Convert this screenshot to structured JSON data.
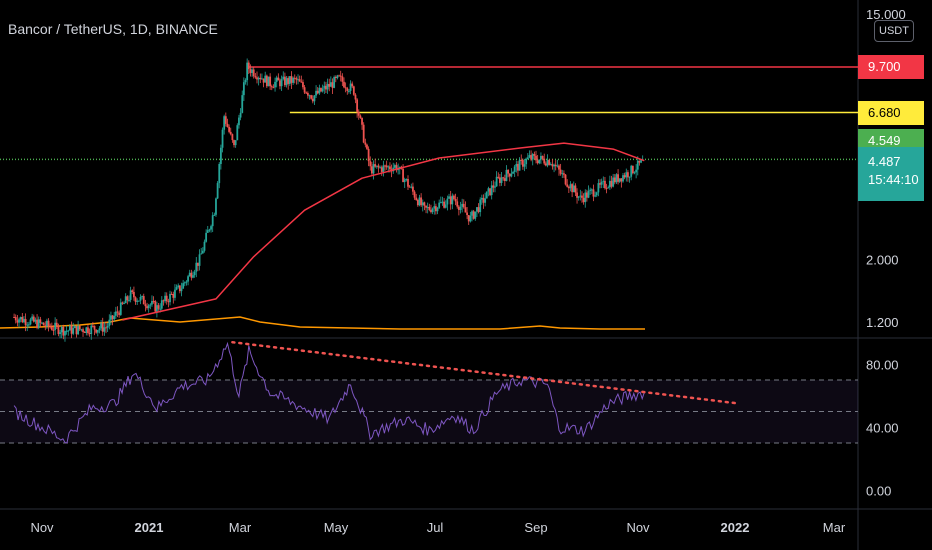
{
  "header": {
    "title": "Bancor / TetherUS, 1D, BINANCE",
    "currency_button": "USDT"
  },
  "price_axis": {
    "ticks": [
      {
        "label": "15.000",
        "value": 15
      },
      {
        "label": "2.000",
        "value": 2
      },
      {
        "label": "1.200",
        "value": 1.2
      }
    ]
  },
  "rsi_axis": {
    "ticks": [
      {
        "label": "80.00",
        "value": 80
      },
      {
        "label": "40.00",
        "value": 40
      },
      {
        "label": "0.00",
        "value": 0
      }
    ]
  },
  "time_axis": {
    "ticks": [
      {
        "label": "Nov",
        "bold": false
      },
      {
        "label": "2021",
        "bold": true
      },
      {
        "label": "Mar",
        "bold": false
      },
      {
        "label": "May",
        "bold": false
      },
      {
        "label": "Jul",
        "bold": false
      },
      {
        "label": "Sep",
        "bold": false
      },
      {
        "label": "Nov",
        "bold": false
      },
      {
        "label": "2022",
        "bold": true
      },
      {
        "label": "Mar",
        "bold": false
      }
    ]
  },
  "badges": {
    "resistance_high": {
      "label": "9.700",
      "color": "#f23645",
      "text_color": "#ffffff"
    },
    "resistance_mid": {
      "label": "6.680",
      "color": "#ffeb3b",
      "text_color": "#000000"
    },
    "support": {
      "label": "4.549",
      "color": "#4caf50",
      "text_color": "#ffffff"
    },
    "last_price": {
      "label": "4.487",
      "countdown": "15:44:10",
      "color": "#26a69a",
      "text_color": "#ffffff"
    }
  },
  "chart_data": [
    {
      "type": "candlestick",
      "pair": "BNTUSDT",
      "interval": "1D",
      "log_scale": true,
      "up_color": "#26a69a",
      "down_color": "#ef5350",
      "horizontal_levels": [
        {
          "value": 9.7,
          "color": "#f23645"
        },
        {
          "value": 6.68,
          "color": "#ffeb3b"
        },
        {
          "value": 4.549,
          "color": "#4caf50"
        }
      ],
      "ma_color": "#f23645",
      "ma_approx": [
        {
          "t": "2020-12-20",
          "v": 1.22
        },
        {
          "t": "2021-02-15",
          "v": 1.45
        },
        {
          "t": "2021-03-10",
          "v": 2.05
        },
        {
          "t": "2021-04-10",
          "v": 3.0
        },
        {
          "t": "2021-05-15",
          "v": 3.9
        },
        {
          "t": "2021-07-01",
          "v": 4.6
        },
        {
          "t": "2021-08-20",
          "v": 5.0
        },
        {
          "t": "2021-09-15",
          "v": 5.2
        },
        {
          "t": "2021-10-15",
          "v": 4.95
        },
        {
          "t": "2021-11-03",
          "v": 4.5
        }
      ],
      "close_approx": [
        {
          "t": "2020-10-15",
          "v": 1.25
        },
        {
          "t": "2020-11-15",
          "v": 1.12
        },
        {
          "t": "2020-12-10",
          "v": 1.15
        },
        {
          "t": "2020-12-25",
          "v": 1.5
        },
        {
          "t": "2021-01-10",
          "v": 1.35
        },
        {
          "t": "2021-01-25",
          "v": 1.6
        },
        {
          "t": "2021-02-05",
          "v": 2.0
        },
        {
          "t": "2021-02-14",
          "v": 3.0
        },
        {
          "t": "2021-02-20",
          "v": 6.5
        },
        {
          "t": "2021-02-26",
          "v": 5.0
        },
        {
          "t": "2021-03-06",
          "v": 9.7
        },
        {
          "t": "2021-03-20",
          "v": 8.5
        },
        {
          "t": "2021-04-05",
          "v": 8.7
        },
        {
          "t": "2021-04-15",
          "v": 7.6
        },
        {
          "t": "2021-05-01",
          "v": 8.8
        },
        {
          "t": "2021-05-10",
          "v": 8.0
        },
        {
          "t": "2021-05-20",
          "v": 4.2
        },
        {
          "t": "2021-06-05",
          "v": 4.3
        },
        {
          "t": "2021-06-22",
          "v": 3.0
        },
        {
          "t": "2021-07-10",
          "v": 3.3
        },
        {
          "t": "2021-07-20",
          "v": 2.8
        },
        {
          "t": "2021-08-05",
          "v": 3.8
        },
        {
          "t": "2021-08-25",
          "v": 4.6
        },
        {
          "t": "2021-09-07",
          "v": 4.5
        },
        {
          "t": "2021-09-25",
          "v": 3.3
        },
        {
          "t": "2021-10-10",
          "v": 3.7
        },
        {
          "t": "2021-10-25",
          "v": 4.1
        },
        {
          "t": "2021-11-03",
          "v": 4.487
        }
      ]
    },
    {
      "type": "line",
      "indicator": "RSI",
      "color": "#7e57c2",
      "band_upper": 70,
      "band_middle": 50,
      "band_lower": 30,
      "trendline": {
        "from": {
          "t": "2021-02-25",
          "v": 94
        },
        "to": {
          "t": "2021-12-31",
          "v": 55
        },
        "color": "#ef5350",
        "style": "dotted"
      },
      "values_approx": [
        {
          "t": "2020-10-15",
          "v": 50
        },
        {
          "t": "2020-11-01",
          "v": 40
        },
        {
          "t": "2020-11-15",
          "v": 32
        },
        {
          "t": "2020-12-01",
          "v": 52
        },
        {
          "t": "2020-12-15",
          "v": 55
        },
        {
          "t": "2020-12-27",
          "v": 75
        },
        {
          "t": "2021-01-10",
          "v": 52
        },
        {
          "t": "2021-01-25",
          "v": 66
        },
        {
          "t": "2021-02-10",
          "v": 70
        },
        {
          "t": "2021-02-22",
          "v": 93
        },
        {
          "t": "2021-03-01",
          "v": 60
        },
        {
          "t": "2021-03-07",
          "v": 88
        },
        {
          "t": "2021-03-20",
          "v": 62
        },
        {
          "t": "2021-04-10",
          "v": 52
        },
        {
          "t": "2021-04-25",
          "v": 45
        },
        {
          "t": "2021-05-08",
          "v": 68
        },
        {
          "t": "2021-05-20",
          "v": 36
        },
        {
          "t": "2021-06-10",
          "v": 45
        },
        {
          "t": "2021-06-25",
          "v": 38
        },
        {
          "t": "2021-07-10",
          "v": 48
        },
        {
          "t": "2021-07-22",
          "v": 38
        },
        {
          "t": "2021-08-05",
          "v": 62
        },
        {
          "t": "2021-08-20",
          "v": 70
        },
        {
          "t": "2021-09-05",
          "v": 67
        },
        {
          "t": "2021-09-12",
          "v": 40
        },
        {
          "t": "2021-09-28",
          "v": 38
        },
        {
          "t": "2021-10-12",
          "v": 55
        },
        {
          "t": "2021-10-25",
          "v": 60
        },
        {
          "t": "2021-11-03",
          "v": 62
        }
      ]
    }
  ]
}
